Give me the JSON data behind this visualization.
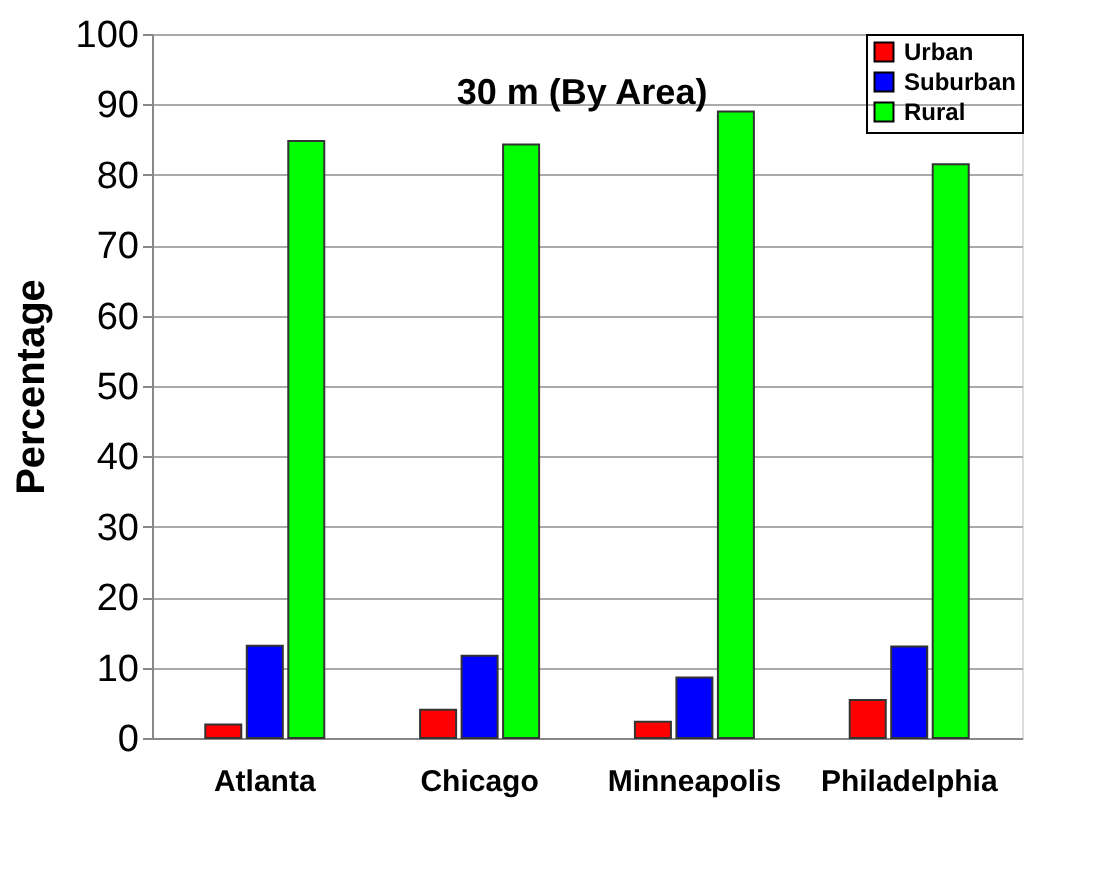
{
  "chart_data": {
    "type": "bar",
    "title": "30 m (By Area)",
    "ylabel": "Percentage",
    "categories": [
      "Atlanta",
      "Chicago",
      "Minneapolis",
      "Philadelphia"
    ],
    "series": [
      {
        "name": "Urban",
        "color": "#ff0000",
        "values": [
          1.9,
          4.0,
          2.3,
          5.4
        ]
      },
      {
        "name": "Suburban",
        "color": "#0000ff",
        "values": [
          13.1,
          11.7,
          8.6,
          13.0
        ]
      },
      {
        "name": "Rural",
        "color": "#00ff00",
        "values": [
          84.8,
          84.3,
          89.0,
          81.5
        ]
      }
    ],
    "ylim": [
      0,
      100
    ],
    "yticks": [
      0,
      10,
      20,
      30,
      40,
      50,
      60,
      70,
      80,
      90,
      100
    ],
    "grid": "y",
    "legend": "top right"
  }
}
